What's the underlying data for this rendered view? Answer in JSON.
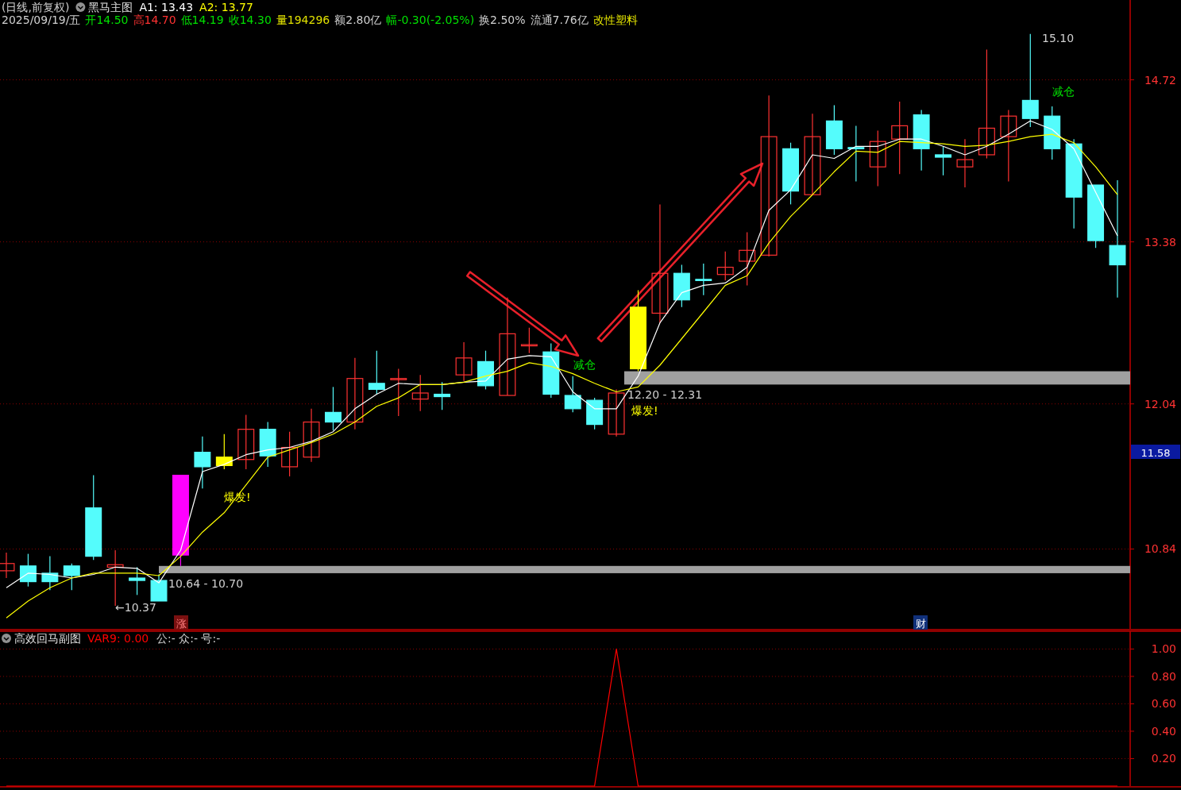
{
  "chart_data": [
    {
      "type": "candlestick",
      "title": "黑马主图",
      "subtitle": "(日线,前复权)",
      "categories": [
        null,
        null,
        null,
        null,
        null,
        null,
        null,
        null,
        null,
        null,
        null,
        null,
        null,
        null,
        null,
        null,
        null,
        null,
        null,
        null,
        null,
        null,
        null,
        null,
        null,
        null,
        null,
        null,
        null,
        null,
        null,
        null,
        null,
        null,
        null,
        null,
        null,
        null,
        null,
        null,
        null,
        null,
        null,
        null,
        null,
        null,
        null,
        null,
        null,
        null,
        null,
        null
      ],
      "ohlc": [
        [
          10.66,
          10.81,
          10.6,
          10.72
        ],
        [
          10.7,
          10.8,
          10.53,
          10.57
        ],
        [
          10.64,
          10.78,
          10.5,
          10.57
        ],
        [
          10.7,
          10.72,
          10.5,
          10.62
        ],
        [
          11.18,
          11.45,
          10.75,
          10.78
        ],
        [
          10.69,
          10.83,
          10.37,
          10.71
        ],
        [
          10.6,
          10.69,
          10.46,
          10.58
        ],
        [
          10.58,
          10.63,
          10.41,
          10.41
        ],
        [
          10.79,
          11.45,
          10.7,
          11.45
        ],
        [
          11.64,
          11.77,
          11.34,
          11.52
        ],
        [
          11.53,
          11.79,
          11.5,
          11.6
        ],
        [
          11.58,
          11.95,
          11.5,
          11.83
        ],
        [
          11.83,
          11.89,
          11.52,
          11.61
        ],
        [
          11.52,
          11.81,
          11.44,
          11.68
        ],
        [
          11.6,
          12.0,
          11.56,
          11.89
        ],
        [
          11.97,
          12.18,
          11.82,
          11.89
        ],
        [
          11.89,
          12.42,
          11.83,
          12.25
        ],
        [
          12.21,
          12.48,
          12.12,
          12.16
        ],
        [
          12.24,
          12.33,
          11.94,
          12.25
        ],
        [
          12.08,
          12.28,
          11.98,
          12.13
        ],
        [
          12.12,
          12.22,
          11.99,
          12.1
        ],
        [
          12.28,
          12.55,
          12.23,
          12.42
        ],
        [
          12.39,
          12.48,
          12.16,
          12.19
        ],
        [
          12.11,
          12.92,
          12.11,
          12.62
        ],
        [
          12.52,
          12.67,
          12.46,
          12.53
        ],
        [
          12.47,
          12.54,
          12.09,
          12.12
        ],
        [
          12.11,
          12.27,
          11.97,
          12.0
        ],
        [
          12.07,
          12.09,
          11.83,
          11.87
        ],
        [
          11.79,
          12.16,
          11.77,
          12.13
        ],
        [
          12.33,
          12.98,
          12.31,
          12.84
        ],
        [
          12.79,
          13.69,
          12.71,
          13.12
        ],
        [
          13.12,
          13.19,
          12.84,
          12.9
        ],
        [
          13.07,
          13.2,
          12.94,
          13.06
        ],
        [
          13.11,
          13.3,
          13.06,
          13.17
        ],
        [
          13.22,
          13.46,
          13.02,
          13.31
        ],
        [
          13.27,
          14.59,
          13.26,
          14.25
        ],
        [
          14.15,
          14.2,
          13.69,
          13.8
        ],
        [
          13.77,
          14.44,
          13.77,
          14.25
        ],
        [
          14.38,
          14.51,
          14.1,
          14.15
        ],
        [
          14.16,
          14.34,
          13.88,
          14.15
        ],
        [
          14.0,
          14.3,
          13.84,
          14.21
        ],
        [
          14.23,
          14.54,
          13.94,
          14.34
        ],
        [
          14.43,
          14.47,
          13.97,
          14.15
        ],
        [
          14.1,
          14.17,
          13.93,
          14.08
        ],
        [
          14.0,
          14.23,
          13.83,
          14.06
        ],
        [
          14.1,
          14.97,
          14.07,
          14.32
        ],
        [
          14.25,
          14.47,
          13.88,
          14.42
        ],
        [
          14.55,
          15.1,
          14.33,
          14.4
        ],
        [
          14.42,
          14.5,
          14.06,
          14.15
        ],
        [
          14.19,
          14.23,
          13.49,
          13.75
        ],
        [
          13.85,
          13.85,
          13.33,
          13.39
        ],
        [
          13.35,
          13.89,
          12.92,
          13.19
        ]
      ],
      "colors": [
        "#ff3232",
        "#54fcfc",
        "#54fcfc",
        "#54fcfc",
        "#54fcfc",
        "#ff3232",
        "#54fcfc",
        "#54fcfc",
        "#ff00ff",
        "#54fcfc",
        "#ffff00",
        "#ff3232",
        "#54fcfc",
        "#ff3232",
        "#ff3232",
        "#54fcfc",
        "#ff3232",
        "#54fcfc",
        "#ff3232",
        "#ff3232",
        "#54fcfc",
        "#ff3232",
        "#54fcfc",
        "#ff3232",
        "#ff3232",
        "#54fcfc",
        "#54fcfc",
        "#54fcfc",
        "#ff3232",
        "#ffff00",
        "#ff3232",
        "#54fcfc",
        "#54fcfc",
        "#ff3232",
        "#ff3232",
        "#ff3232",
        "#54fcfc",
        "#ff3232",
        "#54fcfc",
        "#54fcfc",
        "#ff3232",
        "#ff3232",
        "#54fcfc",
        "#54fcfc",
        "#ff3232",
        "#ff3232",
        "#ff3232",
        "#54fcfc",
        "#54fcfc",
        "#54fcfc",
        "#54fcfc",
        "#54fcfc"
      ],
      "series": [
        {
          "name": "A1: 13.43",
          "type": "line",
          "color": "#ffffff",
          "values": [
            10.52,
            10.64,
            10.63,
            10.6,
            10.63,
            10.69,
            10.68,
            10.56,
            10.83,
            11.48,
            11.54,
            11.62,
            11.66,
            11.68,
            11.73,
            11.81,
            12.0,
            12.12,
            12.21,
            12.2,
            12.2,
            12.22,
            12.23,
            12.41,
            12.44,
            12.43,
            12.14,
            12.0,
            12.0,
            12.27,
            12.71,
            12.96,
            13.02,
            13.04,
            13.17,
            13.64,
            13.81,
            14.1,
            14.07,
            14.17,
            14.17,
            14.23,
            14.23,
            14.17,
            14.1,
            14.17,
            14.27,
            14.38,
            14.31,
            14.15,
            13.79,
            13.43
          ]
        },
        {
          "name": "A2: 13.77",
          "type": "line",
          "color": "#ffff00",
          "values": [
            10.27,
            10.41,
            10.52,
            10.6,
            10.64,
            10.64,
            10.64,
            10.62,
            10.78,
            10.98,
            11.14,
            11.37,
            11.6,
            11.66,
            11.72,
            11.79,
            11.89,
            12.02,
            12.09,
            12.2,
            12.2,
            12.22,
            12.27,
            12.31,
            12.38,
            12.35,
            12.29,
            12.21,
            12.14,
            12.18,
            12.36,
            12.58,
            12.8,
            13.02,
            13.1,
            13.37,
            13.59,
            13.77,
            13.96,
            14.13,
            14.12,
            14.21,
            14.2,
            14.19,
            14.17,
            14.18,
            14.21,
            14.25,
            14.27,
            14.2,
            14.0,
            13.77
          ]
        }
      ],
      "ylim": [
        10.18,
        15.38
      ],
      "yticks": [
        10.84,
        12.04,
        13.38,
        14.72
      ],
      "grid": "y",
      "tick_labels": "y",
      "bands": [
        {
          "axis": "y",
          "from": 10.64,
          "to": 10.7,
          "label": "10.64 - 10.70",
          "color": "#a0a0a0"
        },
        {
          "axis": "y",
          "from": 12.2,
          "to": 12.31,
          "label": "12.20 - 12.31",
          "color": "#a0a0a0"
        }
      ],
      "annotations": [
        "2025/09/19/五 开14.50 高14.70 低14.19 收14.30 量194296 额2.80亿 幅-0.30(-2.05%) 换2.50% 流通7.76亿 改性塑料",
        "←10.37",
        "15.10",
        "减仓",
        "减仓",
        "爆发!",
        "爆发!",
        "涨",
        "财",
        "11.58"
      ]
    },
    {
      "type": "line",
      "title": "高效回马副图",
      "categories": [
        null,
        null,
        null,
        null,
        null,
        null,
        null,
        null,
        null,
        null,
        null,
        null,
        null,
        null,
        null,
        null,
        null,
        null,
        null,
        null,
        null,
        null,
        null,
        null,
        null,
        null,
        null,
        null,
        null,
        null,
        null,
        null,
        null,
        null,
        null,
        null,
        null,
        null,
        null,
        null,
        null,
        null,
        null,
        null,
        null,
        null,
        null,
        null,
        null,
        null,
        null,
        null
      ],
      "series": [
        {
          "name": "VAR9: 0.00",
          "color": "#ff0000",
          "values": [
            0,
            0,
            0,
            0,
            0,
            0,
            0,
            0,
            0,
            0,
            0,
            0,
            0,
            0,
            0,
            0,
            0,
            0,
            0,
            0,
            0,
            0,
            0,
            0,
            0,
            0,
            0,
            0,
            1,
            0,
            0,
            0,
            0,
            0,
            0,
            0,
            0,
            0,
            0,
            0,
            0,
            0,
            0,
            0,
            0,
            0,
            0,
            0,
            0,
            0,
            0,
            0
          ]
        }
      ],
      "ylim": [
        0,
        1.13
      ],
      "yticks": [
        {
          "value": 0.2,
          "label": "0.20"
        },
        {
          "value": 0.4,
          "label": "0.40"
        },
        {
          "value": 0.6,
          "label": "0.60"
        },
        {
          "value": 0.8,
          "label": "0.80"
        },
        {
          "value": 1.0,
          "label": "1.00"
        }
      ],
      "grid": "y",
      "tick_labels": "y",
      "annotations": [
        "公:-  众:-  号:-"
      ]
    }
  ]
}
